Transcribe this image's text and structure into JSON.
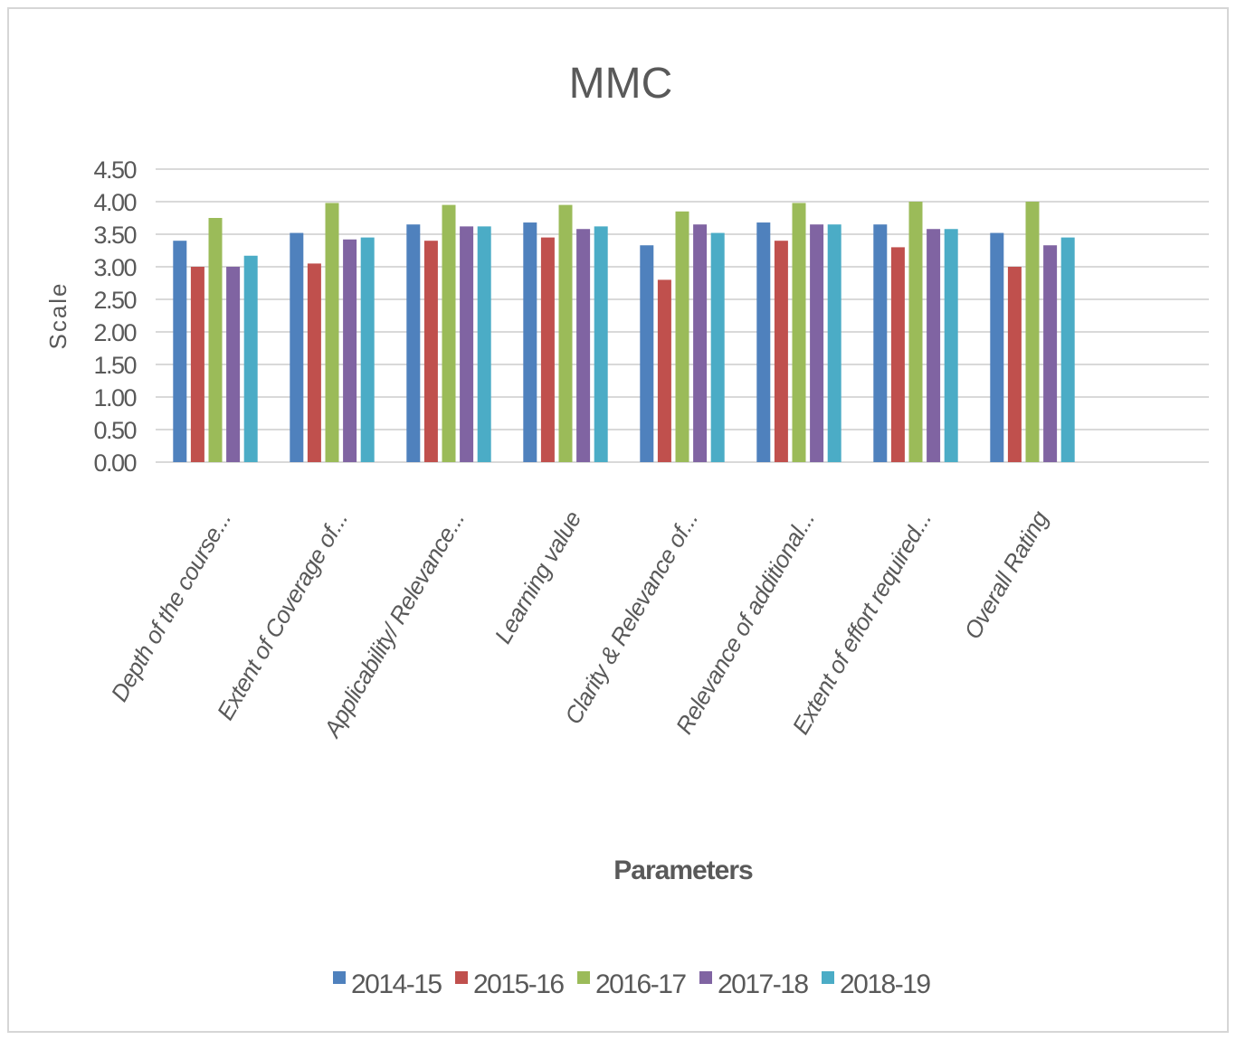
{
  "chart_data": {
    "type": "bar",
    "title": "MMC",
    "xlabel": "Parameters",
    "ylabel": "Scale",
    "ylim": [
      0,
      4.5
    ],
    "yticks": [
      "0.00",
      "0.50",
      "1.00",
      "1.50",
      "2.00",
      "2.50",
      "3.00",
      "3.50",
      "4.00",
      "4.50"
    ],
    "grid": true,
    "legend_position": "bottom",
    "categories": [
      "Depth of the course...",
      "Extent of Coverage of...",
      "Applicability/ Relevance...",
      "Learning value",
      "Clarity & Relevance of...",
      "Relevance of additional...",
      "Extent of effort required...",
      "Overall Rating"
    ],
    "series": [
      {
        "name": "2014-15",
        "color": "#4f81bd",
        "values": [
          3.4,
          3.52,
          3.65,
          3.68,
          3.33,
          3.68,
          3.65,
          3.52
        ]
      },
      {
        "name": "2015-16",
        "color": "#c0504d",
        "values": [
          3.0,
          3.05,
          3.4,
          3.45,
          2.8,
          3.4,
          3.3,
          3.0
        ]
      },
      {
        "name": "2016-17",
        "color": "#9bbb59",
        "values": [
          3.75,
          3.98,
          3.95,
          3.95,
          3.85,
          3.98,
          4.0,
          4.0
        ]
      },
      {
        "name": "2017-18",
        "color": "#8064a2",
        "values": [
          3.0,
          3.42,
          3.62,
          3.58,
          3.65,
          3.65,
          3.58,
          3.33
        ]
      },
      {
        "name": "2018-19",
        "color": "#4bacc6",
        "values": [
          3.17,
          3.45,
          3.62,
          3.62,
          3.52,
          3.65,
          3.58,
          3.45
        ]
      }
    ]
  }
}
